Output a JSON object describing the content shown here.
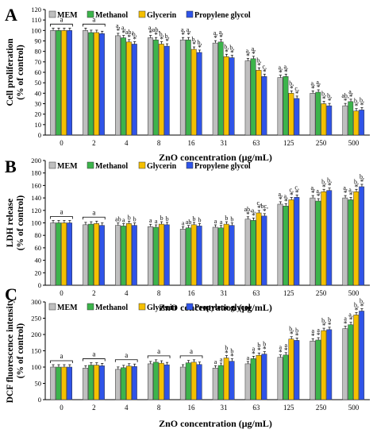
{
  "figure": {
    "series_colors": [
      "#bfbfbf",
      "#3cb44b",
      "#f5c000",
      "#2f54e8"
    ],
    "ticks": [
      "0",
      "2",
      "4",
      "8",
      "16",
      "31",
      "63",
      "125",
      "250",
      "500"
    ]
  },
  "chart_data": [
    {
      "panel_letter": "A",
      "type": "bar",
      "ylabel_line1": "Cell proliferation",
      "ylabel_line2": "(% of control)",
      "xlabel": "ZnO concentration (μg/mL)",
      "ylim": [
        0,
        120
      ],
      "yticks": [
        "0",
        "10",
        "20",
        "30",
        "40",
        "50",
        "60",
        "70",
        "80",
        "90",
        "100",
        "110",
        "120"
      ],
      "legend_position": "top",
      "categories": [
        "0",
        "2",
        "4",
        "8",
        "16",
        "31",
        "63",
        "125",
        "250",
        "500"
      ],
      "series": [
        {
          "name": "MEM",
          "values": [
            100,
            100,
            95,
            93,
            91,
            88,
            71,
            55,
            40,
            28
          ]
        },
        {
          "name": "Methanol",
          "values": [
            100,
            98,
            93,
            91,
            91,
            89,
            73,
            56,
            41,
            32
          ]
        },
        {
          "name": "Glycerin",
          "values": [
            100,
            98,
            89,
            87,
            82,
            75,
            62,
            40,
            30,
            23
          ]
        },
        {
          "name": "Propylene glycol",
          "values": [
            100,
            97,
            87,
            85,
            79,
            74,
            56,
            35,
            28,
            24
          ]
        }
      ],
      "brackets": [
        {
          "index": 0,
          "label": "a"
        },
        {
          "index": 1,
          "label": "a"
        }
      ],
      "annotations": [
        {
          "index": 2,
          "labels": [
            "a,",
            "a,",
            "ab,",
            "b,"
          ],
          "stars": [
            "*",
            "*",
            "*",
            "*"
          ]
        },
        {
          "index": 3,
          "labels": [
            "a,",
            "ab,",
            "b,",
            "b,"
          ],
          "stars": [
            "*",
            "*",
            "*",
            "*"
          ]
        },
        {
          "index": 4,
          "labels": [
            "a,",
            "a,",
            "b,",
            "b,"
          ],
          "stars": [
            "*",
            "*",
            "*",
            "*"
          ]
        },
        {
          "index": 5,
          "labels": [
            "a,",
            "a,",
            "b,",
            "b,"
          ],
          "stars": [
            "*",
            "*",
            "*",
            "*"
          ]
        },
        {
          "index": 6,
          "labels": [
            "a,",
            "a,",
            "b,",
            "c,"
          ],
          "stars": [
            "*",
            "*",
            "*",
            "*"
          ]
        },
        {
          "index": 7,
          "labels": [
            "a,",
            "a,",
            "b,",
            "c,"
          ],
          "stars": [
            "*",
            "*",
            "*",
            "*"
          ]
        },
        {
          "index": 8,
          "labels": [
            "a,",
            "a,",
            "b,",
            "b,"
          ],
          "stars": [
            "*",
            "*",
            "*",
            "*"
          ]
        },
        {
          "index": 9,
          "labels": [
            "ab,",
            "a,",
            "b,",
            "b,"
          ],
          "stars": [
            "*",
            "*",
            "*",
            "*"
          ]
        }
      ]
    },
    {
      "panel_letter": "B",
      "type": "bar",
      "ylabel_line1": "LDH release",
      "ylabel_line2": "(% of control)",
      "xlabel": "ZnO concentration (μg/mL)",
      "ylim": [
        0,
        200
      ],
      "yticks": [
        "0",
        "20",
        "40",
        "60",
        "80",
        "100",
        "120",
        "140",
        "160",
        "180",
        "200"
      ],
      "legend_position": "top",
      "categories": [
        "0",
        "2",
        "4",
        "8",
        "16",
        "31",
        "63",
        "125",
        "250",
        "500"
      ],
      "series": [
        {
          "name": "MEM",
          "values": [
            100,
            97,
            96,
            94,
            90,
            93,
            106,
            130,
            140,
            140
          ]
        },
        {
          "name": "Methanol",
          "values": [
            100,
            98,
            95,
            93,
            92,
            92,
            104,
            127,
            135,
            137
          ]
        },
        {
          "name": "Glycerin",
          "values": [
            100,
            99,
            99,
            98,
            97,
            98,
            116,
            137,
            150,
            150
          ]
        },
        {
          "name": "Propylene glycol",
          "values": [
            100,
            96,
            96,
            97,
            95,
            96,
            111,
            141,
            152,
            158
          ]
        }
      ],
      "brackets": [
        {
          "index": 0,
          "label": "a"
        },
        {
          "index": 1,
          "label": "a"
        }
      ],
      "annotations": [
        {
          "index": 2,
          "labels": [
            "ab",
            "a",
            "b",
            "b"
          ],
          "stars": [
            "",
            "",
            "",
            ""
          ]
        },
        {
          "index": 3,
          "labels": [
            "a",
            "a",
            "b",
            "b"
          ],
          "stars": [
            "",
            "",
            "",
            ""
          ]
        },
        {
          "index": 4,
          "labels": [
            "a",
            "ab",
            "b",
            "b"
          ],
          "stars": [
            "",
            "",
            "",
            ""
          ]
        },
        {
          "index": 5,
          "labels": [
            "a",
            "a",
            "b",
            "b"
          ],
          "stars": [
            "",
            "",
            "",
            ""
          ]
        },
        {
          "index": 6,
          "labels": [
            "ab,",
            "a,",
            "c,",
            "bc,"
          ],
          "stars": [
            "*",
            "*",
            "*",
            "*"
          ]
        },
        {
          "index": 7,
          "labels": [
            "a,",
            "a,",
            "c,",
            "c,"
          ],
          "stars": [
            "*",
            "*",
            "*",
            "*"
          ]
        },
        {
          "index": 8,
          "labels": [
            "a,",
            "a,",
            "b,",
            "b,"
          ],
          "stars": [
            "*",
            "*",
            "*",
            "*"
          ]
        },
        {
          "index": 9,
          "labels": [
            "a,",
            "a,",
            "b,",
            "b,"
          ],
          "stars": [
            "*",
            "*",
            "*",
            "*"
          ]
        }
      ]
    },
    {
      "panel_letter": "C",
      "type": "bar",
      "ylabel_line1": "DCF fluorescence intensity",
      "ylabel_line2": "(% of control)",
      "xlabel": "ZnO concentration (μg/mL)",
      "ylim": [
        0,
        300
      ],
      "yticks": [
        "0",
        "50",
        "100",
        "150",
        "200",
        "250",
        "300"
      ],
      "legend_position": "top",
      "categories": [
        "0",
        "2",
        "4",
        "8",
        "16",
        "31",
        "63",
        "125",
        "250",
        "500"
      ],
      "series": [
        {
          "name": "MEM",
          "values": [
            100,
            97,
            93,
            110,
            100,
            97,
            110,
            130,
            180,
            218
          ]
        },
        {
          "name": "Methanol",
          "values": [
            100,
            106,
            98,
            115,
            113,
            105,
            126,
            137,
            183,
            230
          ]
        },
        {
          "name": "Glycerin",
          "values": [
            100,
            106,
            103,
            112,
            115,
            128,
            136,
            186,
            212,
            260
          ]
        },
        {
          "name": "Propylene glycol",
          "values": [
            100,
            104,
            102,
            107,
            108,
            118,
            140,
            182,
            215,
            272
          ]
        }
      ],
      "brackets": [
        {
          "index": 0,
          "label": "a"
        },
        {
          "index": 1,
          "label": "a"
        },
        {
          "index": 2,
          "label": "a"
        },
        {
          "index": 3,
          "label": "a"
        },
        {
          "index": 4,
          "label": "a"
        }
      ],
      "annotations": [
        {
          "index": 5,
          "labels": [
            "a",
            "a",
            "b",
            "b"
          ],
          "stars": [
            "",
            "",
            "*",
            "*"
          ]
        },
        {
          "index": 6,
          "labels": [
            "a",
            "a",
            "b",
            "b"
          ],
          "stars": [
            "",
            "*",
            "*",
            "*"
          ]
        },
        {
          "index": 7,
          "labels": [
            "a",
            "a",
            "b,",
            "b"
          ],
          "stars": [
            "*",
            "*",
            "*",
            "*"
          ]
        },
        {
          "index": 8,
          "labels": [
            "a",
            "a",
            "b,",
            "b"
          ],
          "stars": [
            "*",
            "*",
            "*",
            "*"
          ]
        },
        {
          "index": 9,
          "labels": [
            "a",
            "a,",
            "b,",
            "b,"
          ],
          "stars": [
            "*",
            "*",
            "*",
            "*"
          ]
        }
      ]
    }
  ]
}
